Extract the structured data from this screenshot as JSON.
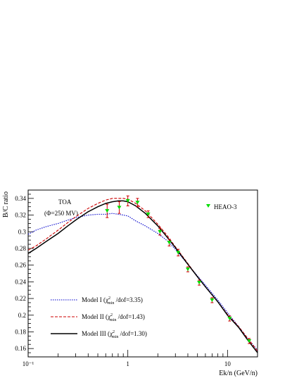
{
  "chart_data": {
    "type": "line",
    "xlabel": "Ek/n (GeV/n)",
    "ylabel": "B/C ratio",
    "xscale": "log",
    "xlim": [
      0.1,
      20
    ],
    "ylim": [
      0.15,
      0.35
    ],
    "x_ticks": [
      0.1,
      1,
      10
    ],
    "x_tick_labels": [
      "10⁻¹",
      "1",
      "10"
    ],
    "y_ticks": [
      0.16,
      0.18,
      0.2,
      0.22,
      0.24,
      0.26,
      0.28,
      0.3,
      0.32,
      0.34
    ],
    "y_tick_labels": [
      "0.16",
      "0.18",
      "0.2",
      "0.22",
      "0.24",
      "0.26",
      "0.28",
      "0.3",
      "0.32",
      "0.34"
    ],
    "grid": false,
    "annotations": {
      "line1": "TOA",
      "line2": "(Φ=250 MV)"
    },
    "series": [
      {
        "name": "Model I",
        "chi_label": "min",
        "fit": "/dof=3.35",
        "color": "#0000cc",
        "style": "dotted",
        "x": [
          0.1,
          0.12,
          0.15,
          0.2,
          0.25,
          0.3,
          0.4,
          0.5,
          0.6,
          0.7,
          0.8,
          0.9,
          1.0,
          1.2,
          1.5,
          2,
          2.5,
          3,
          4,
          5,
          6,
          8,
          10,
          13,
          16,
          20
        ],
        "y": [
          0.297,
          0.302,
          0.306,
          0.31,
          0.314,
          0.317,
          0.32,
          0.321,
          0.321,
          0.322,
          0.321,
          0.32,
          0.319,
          0.313,
          0.307,
          0.298,
          0.289,
          0.279,
          0.261,
          0.247,
          0.236,
          0.218,
          0.203,
          0.186,
          0.172,
          0.158
        ]
      },
      {
        "name": "Model II",
        "chi_label": "min",
        "fit": "/dof=1.43",
        "color": "#cc0000",
        "style": "dashed",
        "x": [
          0.1,
          0.12,
          0.15,
          0.2,
          0.25,
          0.3,
          0.4,
          0.5,
          0.6,
          0.7,
          0.8,
          0.9,
          1.0,
          1.2,
          1.5,
          2,
          2.5,
          3,
          4,
          5,
          6,
          8,
          10,
          13,
          16,
          20
        ],
        "y": [
          0.278,
          0.283,
          0.291,
          0.302,
          0.311,
          0.318,
          0.328,
          0.334,
          0.338,
          0.34,
          0.34,
          0.34,
          0.339,
          0.334,
          0.325,
          0.309,
          0.295,
          0.282,
          0.262,
          0.246,
          0.234,
          0.216,
          0.201,
          0.186,
          0.172,
          0.157
        ]
      },
      {
        "name": "Model III",
        "chi_label": "min",
        "fit": "/dof=1.30",
        "color": "#000000",
        "style": "solid",
        "x": [
          0.1,
          0.12,
          0.15,
          0.2,
          0.25,
          0.3,
          0.4,
          0.5,
          0.6,
          0.7,
          0.8,
          0.9,
          1.0,
          1.2,
          1.5,
          2,
          2.5,
          3,
          4,
          5,
          6,
          8,
          10,
          13,
          16,
          20
        ],
        "y": [
          0.274,
          0.28,
          0.288,
          0.298,
          0.307,
          0.314,
          0.324,
          0.33,
          0.334,
          0.336,
          0.337,
          0.337,
          0.336,
          0.331,
          0.322,
          0.307,
          0.293,
          0.281,
          0.261,
          0.246,
          0.234,
          0.216,
          0.2,
          0.185,
          0.17,
          0.155
        ]
      }
    ],
    "data_points": {
      "name": "HEAO-3",
      "color": "#00dd00",
      "error_color": "#cc0000",
      "marker": "triangle-down",
      "x": [
        0.62,
        0.82,
        1.0,
        1.25,
        1.6,
        2.1,
        2.6,
        3.2,
        4.0,
        5.2,
        7.0,
        10.5,
        16.5
      ],
      "y": [
        0.325,
        0.329,
        0.337,
        0.335,
        0.321,
        0.3,
        0.287,
        0.275,
        0.255,
        0.239,
        0.218,
        0.196,
        0.169
      ],
      "err": [
        0.008,
        0.007,
        0.006,
        0.005,
        0.004,
        0.004,
        0.004,
        0.004,
        0.003,
        0.003,
        0.003,
        0.003,
        0.003
      ]
    },
    "legend": {
      "placement": "bottom-left",
      "points_placement": "top-right"
    }
  }
}
